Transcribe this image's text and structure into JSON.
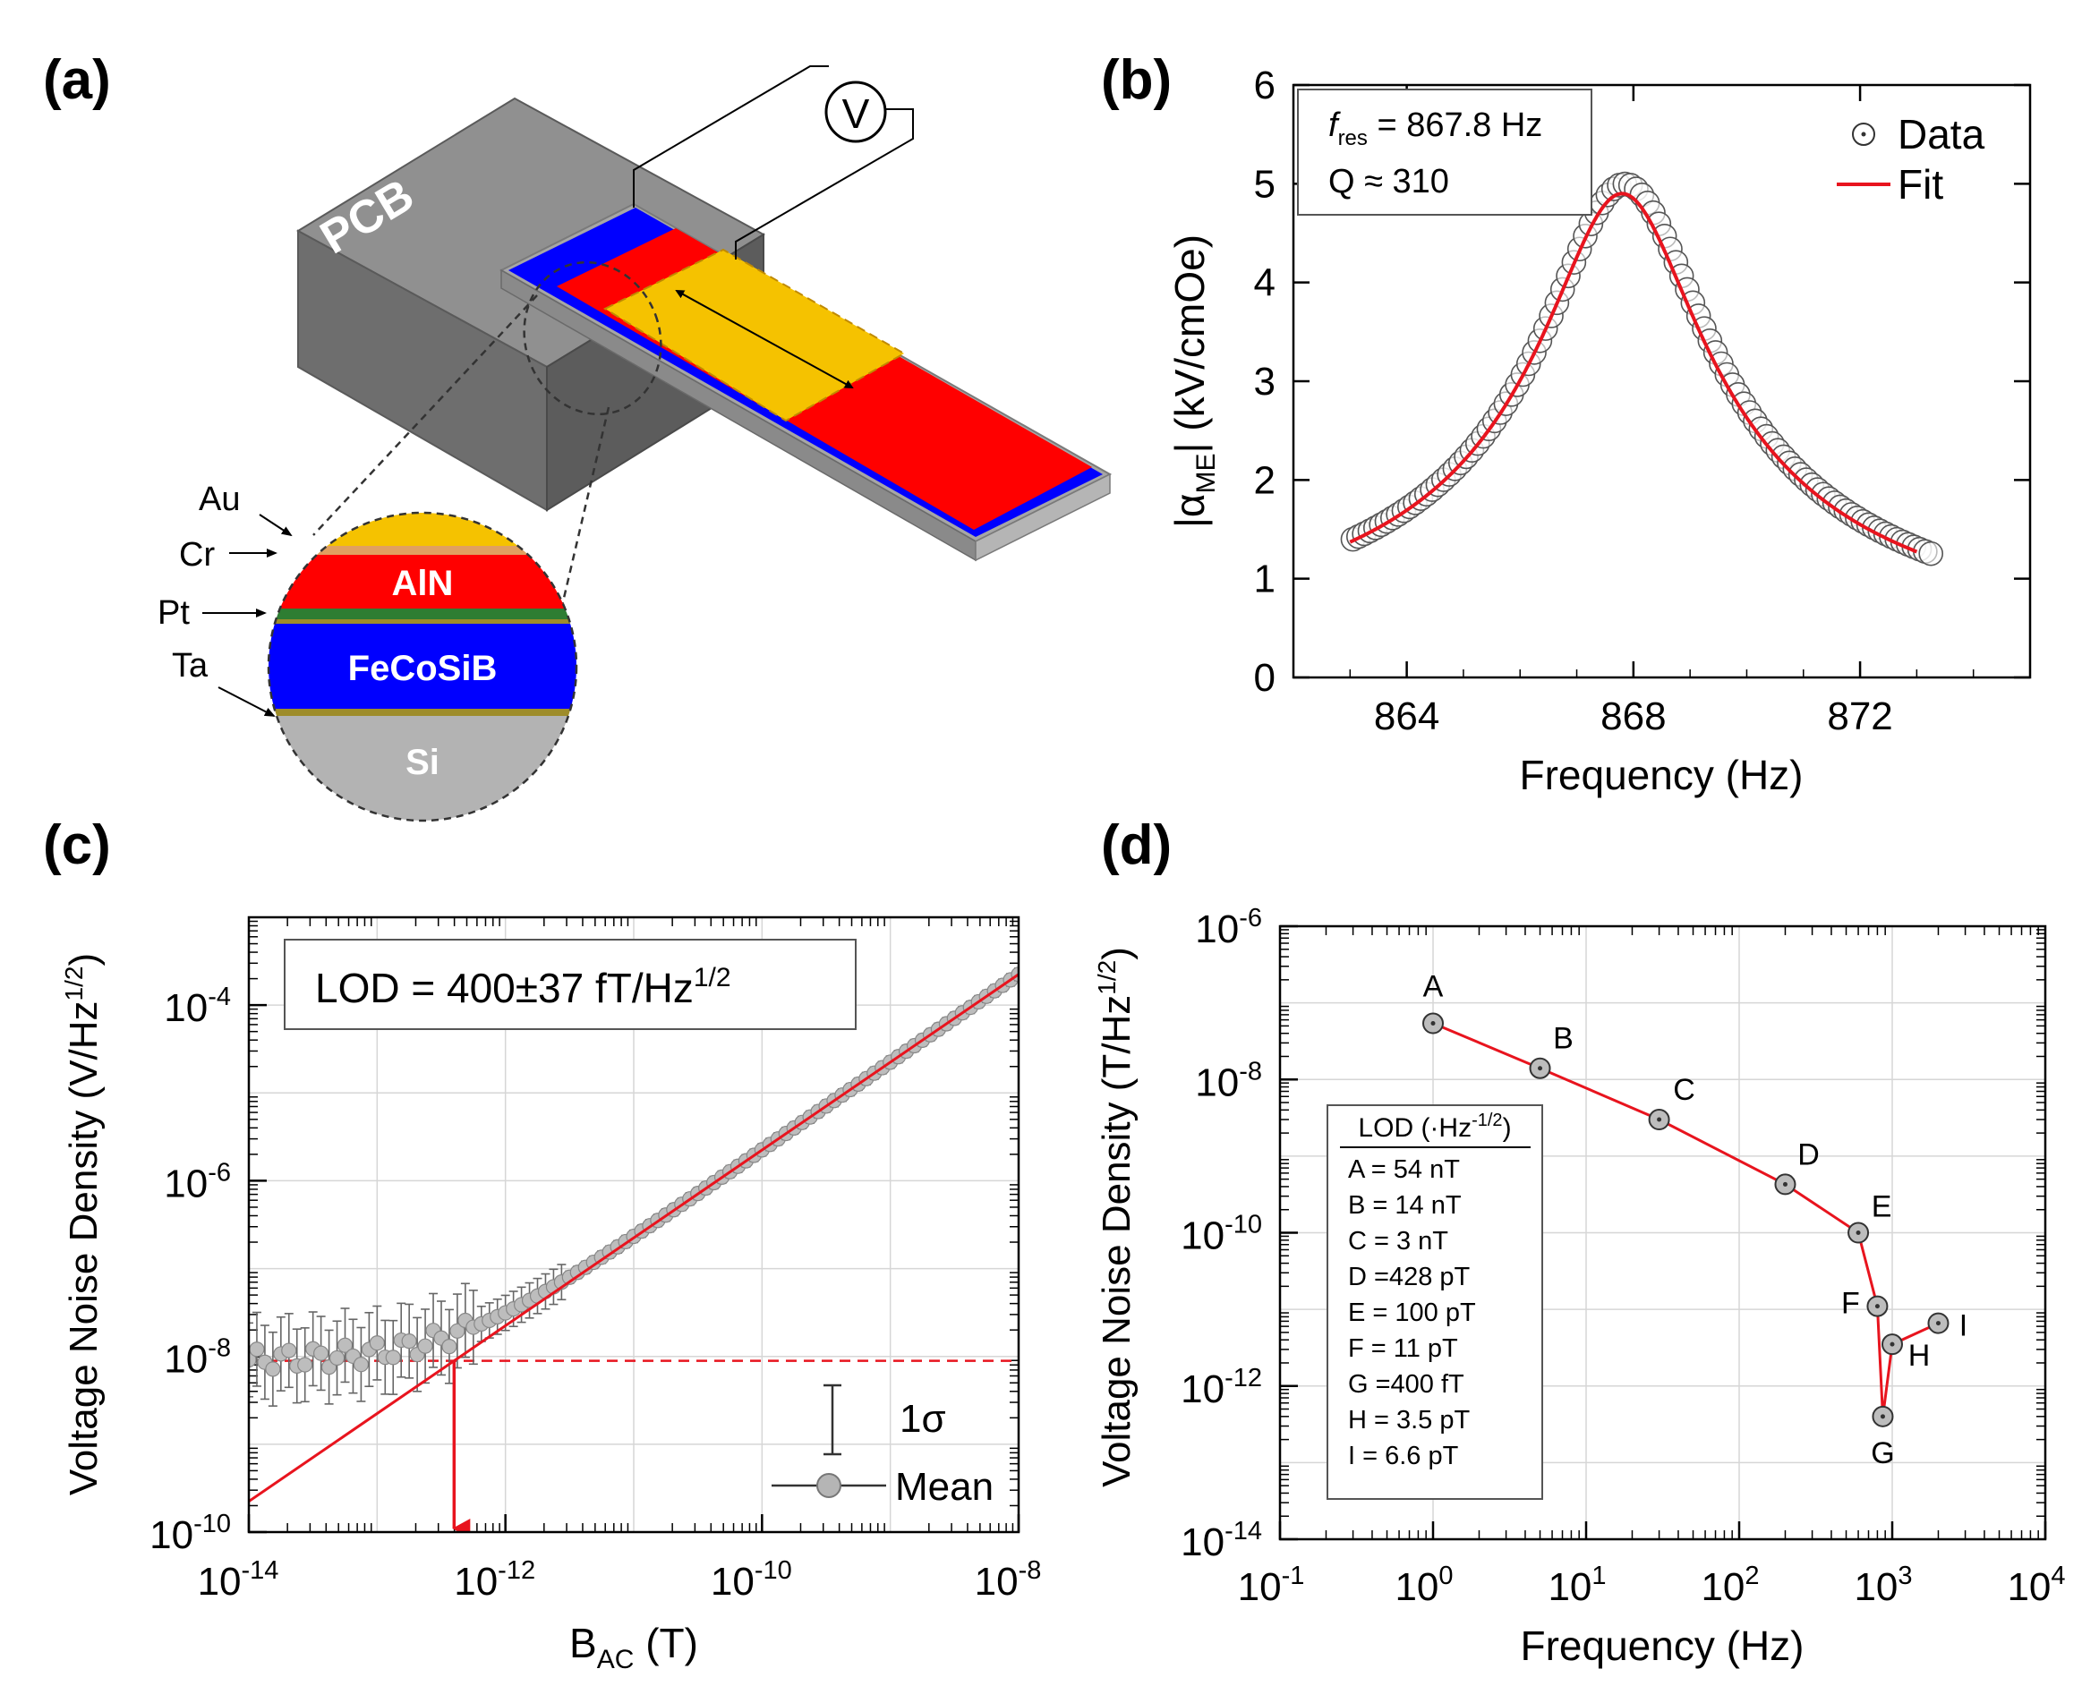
{
  "panels": {
    "a": {
      "label": "(a)",
      "pcb": "PCB",
      "voltmeter": "V",
      "layers": [
        "Au",
        "Cr",
        "AlN",
        "Pt",
        "FeCoSiB",
        "Ta",
        "Si"
      ],
      "colors": {
        "au": "#f5c200",
        "cr": "#e0a060",
        "aln": "#ff0000",
        "pt": "#2e7d32",
        "fecosib": "#0000ff",
        "ta": "#9e8c2a",
        "si": "#b3b3b3",
        "pcb": "#8a8a8a"
      }
    },
    "b": {
      "label": "(b)"
    },
    "c": {
      "label": "(c)"
    },
    "d": {
      "label": "(d)"
    }
  },
  "chart_data": [
    {
      "id": "b",
      "type": "scatter",
      "title": "",
      "xlabel": "Frequency (Hz)",
      "ylabel": "|α",
      "ylabel_sub": "ME",
      "ylabel_end": "| (kV/cmOe)",
      "xlim": [
        862,
        875
      ],
      "ylim": [
        0,
        6
      ],
      "xticks": [
        864,
        868,
        872
      ],
      "xtick_labels": [
        "864",
        "868",
        "872"
      ],
      "yticks": [
        0,
        1,
        2,
        3,
        4,
        5,
        6
      ],
      "ytick_labels": [
        "0",
        "1",
        "2",
        "3",
        "4",
        "5",
        "6"
      ],
      "annotation": {
        "f_label": "f",
        "f_sub": "res",
        "f_value": " = 867.8 Hz",
        "q_text": "Q  ≈ 310"
      },
      "legend": {
        "position": "top-right",
        "entries": [
          "Data",
          "Fit"
        ]
      },
      "lorentz": {
        "f0": 867.8,
        "peak": 4.9,
        "Q": 310
      },
      "series": [
        {
          "name": "Data",
          "style": "open-circle",
          "x_start": 863.0,
          "x_end": 873.2,
          "step": 0.1
        },
        {
          "name": "Fit",
          "style": "line",
          "color": "#e8141e",
          "x_start": 863.0,
          "x_end": 873.0
        }
      ]
    },
    {
      "id": "c",
      "type": "line",
      "xlabel": "B",
      "xlabel_sub": "AC",
      "xlabel_end": " (T)",
      "ylabel": "Voltage Noise Density (V/Hz",
      "ylabel_sup": "1/2",
      "ylabel_end": ")",
      "xscale": "log",
      "yscale": "log",
      "xlim": [
        -14,
        -8
      ],
      "ylim": [
        -10,
        -3
      ],
      "xticks": [
        -14,
        -12,
        -10,
        -8
      ],
      "xtick_labels": [
        "10",
        "10",
        "10",
        "10"
      ],
      "xtick_exps": [
        "-14",
        "-12",
        "-10",
        "-8"
      ],
      "yticks": [
        -10,
        -8,
        -6,
        -4
      ],
      "ytick_labels": [
        "10",
        "10",
        "10",
        "10"
      ],
      "ytick_exps": [
        "-10",
        "-8",
        "-6",
        "-4"
      ],
      "annotation": {
        "text": "LOD = 400±37 fT/Hz",
        "sup": "1/2"
      },
      "legend": {
        "position": "bottom-right",
        "entries": [
          "1σ",
          "Mean"
        ]
      },
      "noise_floor_log": -8.05,
      "lod_log": -12.4,
      "fit_line": {
        "slope": 1,
        "intercept_log": 4.35
      },
      "mean_points": {
        "x_start_log": -14.0,
        "x_end_log": -8.0,
        "step": 0.0625
      }
    },
    {
      "id": "d",
      "type": "line",
      "xlabel": "Frequency (Hz)",
      "ylabel": "Voltage Noise Density (T/Hz",
      "ylabel_sup": "1/2",
      "ylabel_end": ")",
      "xscale": "log",
      "yscale": "log",
      "xlim": [
        -1,
        4
      ],
      "ylim": [
        -14,
        -6
      ],
      "xticks": [
        -1,
        0,
        1,
        2,
        3,
        4
      ],
      "xtick_labels": [
        "10",
        "10",
        "10",
        "10",
        "10",
        "10"
      ],
      "xtick_exps": [
        "-1",
        "0",
        "1",
        "2",
        "3",
        "4"
      ],
      "yticks": [
        -14,
        -12,
        -10,
        -8,
        -6
      ],
      "ytick_labels": [
        "10",
        "10",
        "10",
        "10",
        "10"
      ],
      "ytick_exps": [
        "-14",
        "-12",
        "-10",
        "-8",
        "-6"
      ],
      "points": [
        {
          "label": "A",
          "freq": 1,
          "value": 5.4e-08
        },
        {
          "label": "B",
          "freq": 5,
          "value": 1.4e-08
        },
        {
          "label": "C",
          "freq": 30,
          "value": 3e-09
        },
        {
          "label": "D",
          "freq": 200,
          "value": 4.28e-10
        },
        {
          "label": "E",
          "freq": 600,
          "value": 1e-10
        },
        {
          "label": "F",
          "freq": 800,
          "value": 1.1e-11
        },
        {
          "label": "G",
          "freq": 867.8,
          "value": 4e-13
        },
        {
          "label": "H",
          "freq": 1000,
          "value": 3.5e-12
        },
        {
          "label": "I",
          "freq": 2000,
          "value": 6.6e-12
        }
      ],
      "legend_table": {
        "title": "LOD (·Hz",
        "title_sup": "-1/2",
        "title_end": ")",
        "rows": [
          "A =   54 nT",
          "B =   14 nT",
          "C =     3 nT",
          "D =428 pT",
          "E = 100 pT",
          "F =   11 pT",
          "G =400  fT",
          "H =  3.5 pT",
          "I  =  6.6 pT"
        ]
      }
    }
  ]
}
